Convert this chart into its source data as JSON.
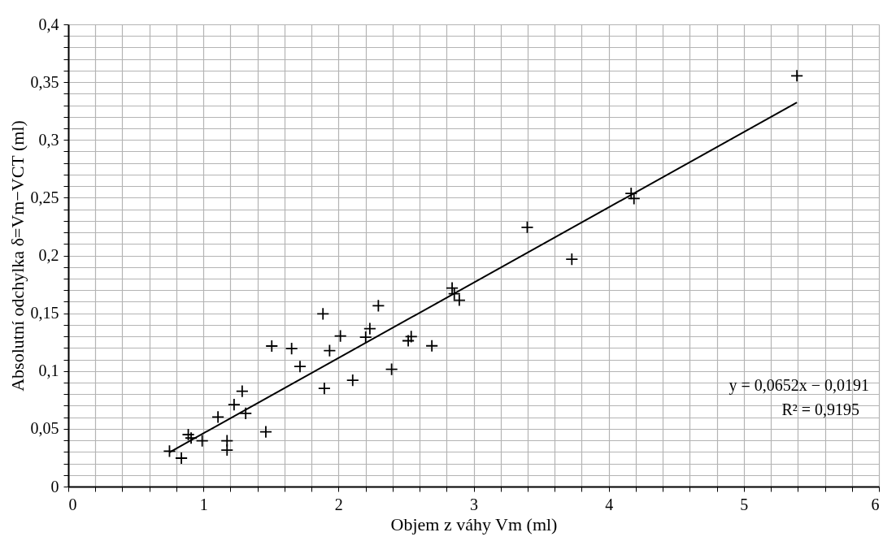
{
  "chart_data": {
    "type": "scatter",
    "xlabel": "Objem z váhy Vm (ml)",
    "ylabel": "Absolutní odchylka δ=Vm−VCT (ml)",
    "x": [
      0.749,
      0.837,
      0.888,
      0.909,
      0.991,
      1.108,
      1.175,
      1.175,
      1.227,
      1.287,
      1.313,
      1.462,
      1.506,
      1.653,
      1.715,
      1.885,
      1.895,
      1.934,
      2.014,
      2.105,
      2.201,
      2.232,
      2.295,
      2.393,
      2.516,
      2.538,
      2.691,
      2.841,
      2.857,
      2.894,
      3.397,
      3.727,
      4.166,
      4.187,
      5.393
    ],
    "series": [
      {
        "color": "#000000",
        "marker": "cross",
        "values": [
          0.0307,
          0.0246,
          0.045,
          0.042,
          0.0396,
          0.0602,
          0.0396,
          0.0316,
          0.0709,
          0.0825,
          0.0634,
          0.0474,
          0.1216,
          0.1194,
          0.1039,
          0.1495,
          0.085,
          0.1177,
          0.1303,
          0.092,
          0.1293,
          0.1366,
          0.1565,
          0.1015,
          0.1262,
          0.1298,
          0.1218,
          0.1718,
          0.1669,
          0.1613,
          0.2244,
          0.1967,
          0.2537,
          0.2493,
          0.3555
        ]
      },
      {
        "type": "line",
        "color": "#000000",
        "line_style": "solid",
        "x": [
          0.749,
          5.393
        ],
        "values": [
          0.0297,
          0.3325
        ]
      }
    ],
    "xlim": [
      0,
      6
    ],
    "ylim": [
      0,
      0.4
    ],
    "xticks": [
      0,
      {
        "value": 0.2,
        "label": null
      },
      {
        "value": 0.4,
        "label": null
      },
      {
        "value": 0.6,
        "label": null
      },
      {
        "value": 0.8,
        "label": null
      },
      1,
      {
        "value": 1.2,
        "label": null
      },
      {
        "value": 1.4,
        "label": null
      },
      {
        "value": 1.6,
        "label": null
      },
      {
        "value": 1.8,
        "label": null
      },
      2,
      {
        "value": 2.2,
        "label": null
      },
      {
        "value": 2.4,
        "label": null
      },
      {
        "value": 2.6,
        "label": null
      },
      {
        "value": 2.8,
        "label": null
      },
      3,
      {
        "value": 3.2,
        "label": null
      },
      {
        "value": 3.4,
        "label": null
      },
      {
        "value": 3.6,
        "label": null
      },
      {
        "value": 3.8,
        "label": null
      },
      4,
      {
        "value": 4.2,
        "label": null
      },
      {
        "value": 4.4,
        "label": null
      },
      {
        "value": 4.6,
        "label": null
      },
      {
        "value": 4.8,
        "label": null
      },
      5,
      {
        "value": 5.2,
        "label": null
      },
      {
        "value": 5.4,
        "label": null
      },
      {
        "value": 5.6,
        "label": null
      },
      {
        "value": 5.8,
        "label": null
      },
      6
    ],
    "yticks": [
      {
        "value": 0,
        "label": "0"
      },
      {
        "value": 0.01,
        "label": null
      },
      {
        "value": 0.02,
        "label": null
      },
      {
        "value": 0.03,
        "label": null
      },
      {
        "value": 0.04,
        "label": null
      },
      {
        "value": 0.05,
        "label": "0,05"
      },
      {
        "value": 0.06,
        "label": null
      },
      {
        "value": 0.07,
        "label": null
      },
      {
        "value": 0.08,
        "label": null
      },
      {
        "value": 0.09,
        "label": null
      },
      {
        "value": 0.1,
        "label": "0,1"
      },
      {
        "value": 0.11,
        "label": null
      },
      {
        "value": 0.12,
        "label": null
      },
      {
        "value": 0.13,
        "label": null
      },
      {
        "value": 0.14,
        "label": null
      },
      {
        "value": 0.15,
        "label": "0,15"
      },
      {
        "value": 0.16,
        "label": null
      },
      {
        "value": 0.17,
        "label": null
      },
      {
        "value": 0.18,
        "label": null
      },
      {
        "value": 0.19,
        "label": null
      },
      {
        "value": 0.2,
        "label": "0,2"
      },
      {
        "value": 0.21,
        "label": null
      },
      {
        "value": 0.22,
        "label": null
      },
      {
        "value": 0.23,
        "label": null
      },
      {
        "value": 0.24,
        "label": null
      },
      {
        "value": 0.25,
        "label": "0,25"
      },
      {
        "value": 0.26,
        "label": null
      },
      {
        "value": 0.27,
        "label": null
      },
      {
        "value": 0.28,
        "label": null
      },
      {
        "value": 0.29,
        "label": null
      },
      {
        "value": 0.3,
        "label": "0,3"
      },
      {
        "value": 0.31,
        "label": null
      },
      {
        "value": 0.32,
        "label": null
      },
      {
        "value": 0.33,
        "label": null
      },
      {
        "value": 0.34,
        "label": null
      },
      {
        "value": 0.35,
        "label": "0,35"
      },
      {
        "value": 0.36,
        "label": null
      },
      {
        "value": 0.37,
        "label": null
      },
      {
        "value": 0.38,
        "label": null
      },
      {
        "value": 0.39,
        "label": null
      },
      {
        "value": 0.4,
        "label": "0,4"
      }
    ],
    "grid": true,
    "legend": false,
    "annotations": [
      "y = 0,0652x − 0,0191",
      "R² = 0,9195"
    ]
  }
}
